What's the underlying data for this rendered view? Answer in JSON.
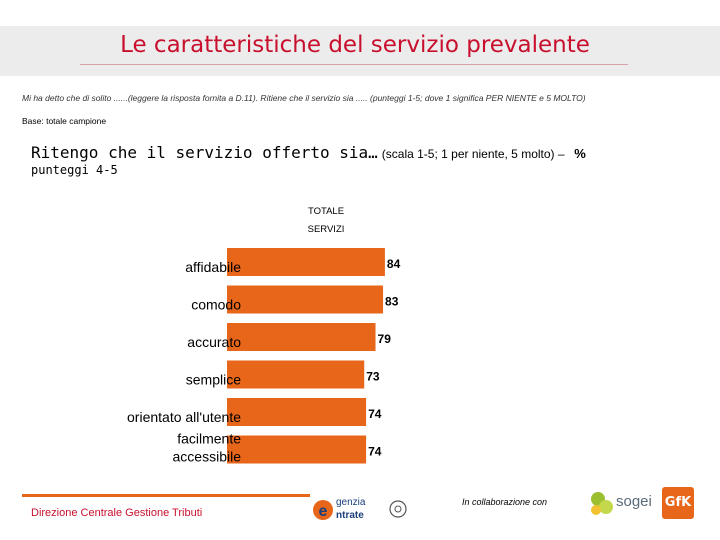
{
  "slide": {
    "title": "Le caratteristiche del servizio prevalente",
    "question": "Mi ha detto che di solito ......(leggere la risposta fornita a D.11). Ritiene che il servizio sia ..... (punteggi 1-5; dove 1 significa PER NIENTE e 5 MOLTO)",
    "base": "Base: totale campione",
    "chart_heading": "Ritengo che il servizio offerto sia…",
    "chart_heading_scale": "(scala 1-5;  1 per niente, 5 molto) –",
    "chart_heading_pct": "%",
    "chart_subheading": "punteggi 4-5"
  },
  "chart_data": {
    "type": "bar",
    "orientation": "horizontal",
    "series_label_line1": "TOTALE",
    "series_label_line2": "SERVIZI",
    "categories": [
      "affidabile",
      "comodo",
      "accurato",
      "semplice",
      "orientato all'utente",
      "facilmente accessibile"
    ],
    "values": [
      84,
      83,
      79,
      73,
      74,
      74
    ],
    "color": "#e8661a"
  },
  "footer": {
    "left": "Direzione Centrale Gestione Tributi",
    "agenzia_line1": "genzia",
    "agenzia_line2": "ntrate",
    "agenzia_initial": "e",
    "collaboration": "In collaborazione con",
    "sogei": "sogei",
    "gfk": "GfK"
  }
}
